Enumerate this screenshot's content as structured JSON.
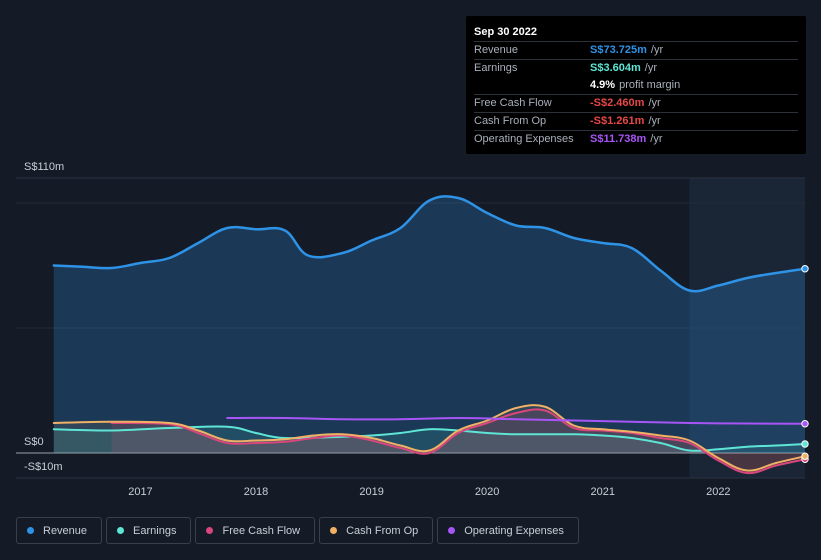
{
  "tooltip": {
    "date": "Sep 30 2022",
    "rows": [
      {
        "label": "Revenue",
        "value": "S$73.725m",
        "unit": "/yr",
        "color": "#2e93e6"
      },
      {
        "label": "Earnings",
        "value": "S$3.604m",
        "unit": "/yr",
        "color": "#5ee5d5"
      },
      {
        "label": "",
        "value": "4.9%",
        "unit": "profit margin",
        "color": "#ffffff"
      },
      {
        "label": "Free Cash Flow",
        "value": "-S$2.460m",
        "unit": "/yr",
        "color": "#e64848"
      },
      {
        "label": "Cash From Op",
        "value": "-S$1.261m",
        "unit": "/yr",
        "color": "#e64848"
      },
      {
        "label": "Operating Expenses",
        "value": "S$11.738m",
        "unit": "/yr",
        "color": "#a855f7"
      }
    ]
  },
  "chart_data": {
    "type": "line",
    "y_labels": {
      "top": "S$110m",
      "zero": "S$0",
      "bottom": "-S$10m"
    },
    "ylim": [
      -10,
      110
    ],
    "xlim": [
      2016.2,
      2022.75
    ],
    "x_ticks": [
      {
        "label": "2017",
        "value": 2017
      },
      {
        "label": "2018",
        "value": 2018
      },
      {
        "label": "2019",
        "value": 2019
      },
      {
        "label": "2020",
        "value": 2020
      },
      {
        "label": "2021",
        "value": 2021
      },
      {
        "label": "2022",
        "value": 2022
      }
    ],
    "forecast_start": 2021.75,
    "series": [
      {
        "name": "Revenue",
        "color": "#2e93e6",
        "fill": true,
        "points": [
          [
            2016.25,
            75
          ],
          [
            2016.5,
            74.5
          ],
          [
            2016.75,
            74
          ],
          [
            2017.0,
            76
          ],
          [
            2017.25,
            78
          ],
          [
            2017.5,
            84
          ],
          [
            2017.75,
            90
          ],
          [
            2018.0,
            89.5
          ],
          [
            2018.25,
            89
          ],
          [
            2018.45,
            79
          ],
          [
            2018.75,
            80
          ],
          [
            2019.0,
            85
          ],
          [
            2019.25,
            90
          ],
          [
            2019.5,
            101
          ],
          [
            2019.75,
            102
          ],
          [
            2020.0,
            96
          ],
          [
            2020.25,
            91
          ],
          [
            2020.5,
            90
          ],
          [
            2020.75,
            86
          ],
          [
            2021.0,
            84
          ],
          [
            2021.25,
            82
          ],
          [
            2021.5,
            73
          ],
          [
            2021.75,
            65
          ],
          [
            2022.0,
            67
          ],
          [
            2022.25,
            70
          ],
          [
            2022.5,
            72
          ],
          [
            2022.75,
            73.7
          ]
        ]
      },
      {
        "name": "Earnings",
        "color": "#5ee5d5",
        "fill": true,
        "points": [
          [
            2016.25,
            9.5
          ],
          [
            2016.75,
            9
          ],
          [
            2017.25,
            10
          ],
          [
            2017.75,
            10.5
          ],
          [
            2018.0,
            8
          ],
          [
            2018.25,
            6
          ],
          [
            2018.75,
            6.5
          ],
          [
            2019.0,
            7
          ],
          [
            2019.25,
            8
          ],
          [
            2019.5,
            9.5
          ],
          [
            2019.75,
            9
          ],
          [
            2020.0,
            8
          ],
          [
            2020.25,
            7.5
          ],
          [
            2020.75,
            7.5
          ],
          [
            2021.0,
            7
          ],
          [
            2021.25,
            6
          ],
          [
            2021.5,
            4
          ],
          [
            2021.75,
            1
          ],
          [
            2022.0,
            1.5
          ],
          [
            2022.25,
            2.5
          ],
          [
            2022.5,
            3
          ],
          [
            2022.75,
            3.6
          ]
        ]
      },
      {
        "name": "Free Cash Flow",
        "color": "#d9467c",
        "fill": true,
        "points": [
          [
            2016.75,
            12
          ],
          [
            2017.25,
            11.5
          ],
          [
            2017.5,
            8
          ],
          [
            2017.75,
            4
          ],
          [
            2018.0,
            4
          ],
          [
            2018.25,
            4.5
          ],
          [
            2018.5,
            6
          ],
          [
            2018.75,
            7
          ],
          [
            2019.0,
            5
          ],
          [
            2019.25,
            2
          ],
          [
            2019.5,
            0
          ],
          [
            2019.75,
            8
          ],
          [
            2020.0,
            12
          ],
          [
            2020.25,
            16
          ],
          [
            2020.5,
            17
          ],
          [
            2020.75,
            10
          ],
          [
            2021.0,
            9
          ],
          [
            2021.25,
            8
          ],
          [
            2021.5,
            6
          ],
          [
            2021.75,
            4
          ],
          [
            2022.0,
            -3
          ],
          [
            2022.25,
            -8
          ],
          [
            2022.5,
            -5
          ],
          [
            2022.75,
            -2.5
          ]
        ]
      },
      {
        "name": "Cash From Op",
        "color": "#f0b166",
        "fill": true,
        "points": [
          [
            2016.25,
            12
          ],
          [
            2016.75,
            12.5
          ],
          [
            2017.25,
            12
          ],
          [
            2017.5,
            9
          ],
          [
            2017.75,
            5
          ],
          [
            2018.0,
            5
          ],
          [
            2018.25,
            5.5
          ],
          [
            2018.5,
            7
          ],
          [
            2018.75,
            7.5
          ],
          [
            2019.0,
            6
          ],
          [
            2019.25,
            3
          ],
          [
            2019.5,
            1
          ],
          [
            2019.75,
            9
          ],
          [
            2020.0,
            13
          ],
          [
            2020.25,
            18
          ],
          [
            2020.5,
            18.5
          ],
          [
            2020.75,
            11
          ],
          [
            2021.0,
            9.5
          ],
          [
            2021.25,
            8.5
          ],
          [
            2021.5,
            7
          ],
          [
            2021.75,
            5
          ],
          [
            2022.0,
            -2
          ],
          [
            2022.25,
            -7
          ],
          [
            2022.5,
            -4
          ],
          [
            2022.75,
            -1.3
          ]
        ]
      },
      {
        "name": "Operating Expenses",
        "color": "#a855f7",
        "fill": false,
        "points": [
          [
            2017.75,
            14
          ],
          [
            2018.25,
            14
          ],
          [
            2018.75,
            13.5
          ],
          [
            2019.25,
            13.5
          ],
          [
            2019.75,
            14
          ],
          [
            2020.25,
            13.5
          ],
          [
            2020.75,
            13
          ],
          [
            2021.25,
            12.5
          ],
          [
            2021.75,
            12
          ],
          [
            2022.25,
            11.8
          ],
          [
            2022.75,
            11.7
          ]
        ]
      }
    ],
    "legend": [
      {
        "name": "Revenue",
        "color": "#2e93e6"
      },
      {
        "name": "Earnings",
        "color": "#5ee5d5"
      },
      {
        "name": "Free Cash Flow",
        "color": "#d9467c"
      },
      {
        "name": "Cash From Op",
        "color": "#f0b166"
      },
      {
        "name": "Operating Expenses",
        "color": "#a855f7"
      }
    ]
  }
}
